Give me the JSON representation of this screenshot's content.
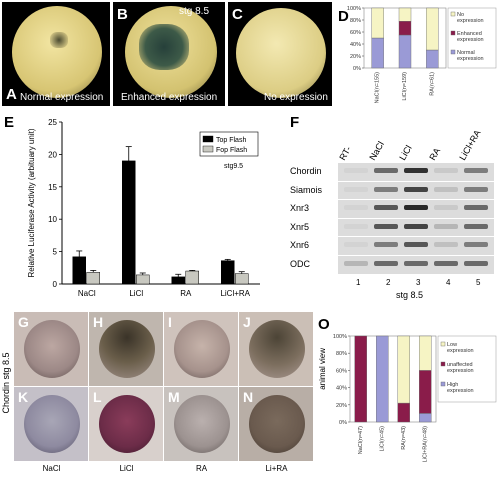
{
  "panelA": {
    "letter": "A",
    "caption": "Normal expression"
  },
  "panelB": {
    "letter": "B",
    "caption": "Enhanced expression",
    "stage": "stg 8.5"
  },
  "panelC": {
    "letter": "C",
    "caption": "No expression"
  },
  "panelD": {
    "letter": "D",
    "chart_data": {
      "type": "bar",
      "stacked": true,
      "categories": [
        "NaCl(n=155)",
        "LiCl(n=159)",
        "RA(n=61)"
      ],
      "yticks": [
        "0%",
        "20%",
        "40%",
        "60%",
        "80%",
        "100%"
      ],
      "ylim": [
        0,
        100
      ],
      "series": [
        {
          "name": "Normal expression",
          "color": "#9a9ad6",
          "values": [
            50,
            55,
            30
          ]
        },
        {
          "name": "Enhanced expression",
          "color": "#8a1c4a",
          "values": [
            0,
            23,
            0
          ]
        },
        {
          "name": "No expression",
          "color": "#f6f4c4",
          "values": [
            50,
            22,
            70
          ]
        }
      ],
      "legend_entries": [
        "No expression",
        "Enhanced expression",
        "Normal expression"
      ],
      "legend": "right"
    }
  },
  "panelE": {
    "letter": "E",
    "chart_data": {
      "type": "bar",
      "categories": [
        "NaCl",
        "LiCl",
        "RA",
        "LiCl+RA"
      ],
      "ylabel": "Relative Luciferase Activity (arbituary unit)",
      "ylim": [
        0,
        25
      ],
      "yticks": [
        "0",
        "5",
        "10",
        "15",
        "20",
        "25"
      ],
      "annotation": "stg9.5",
      "legend": "top-right",
      "series": [
        {
          "name": "Top Flash",
          "color": "#000000",
          "values": [
            4.2,
            19.0,
            1.1,
            3.6
          ],
          "errors": [
            0.9,
            2.2,
            0.4,
            0.2
          ]
        },
        {
          "name": "Fop Flash",
          "color": "#c8c8c0",
          "values": [
            1.8,
            1.4,
            2.0,
            1.6
          ],
          "errors": [
            0.3,
            0.3,
            0.1,
            0.3
          ]
        }
      ]
    }
  },
  "panelF": {
    "letter": "F",
    "lanes": [
      "RT-",
      "NaCl",
      "LiCl",
      "RA",
      "LiCl+RA"
    ],
    "genes": [
      "Chordin",
      "Siamois",
      "Xnr3",
      "Xnr5",
      "Xnr6",
      "ODC"
    ],
    "lane_numbers": [
      "1",
      "2",
      "3",
      "4",
      "5"
    ],
    "stage": "stg 8.5"
  },
  "panelsGN": {
    "side_label": "Chordin stg 8.5",
    "letters_top": [
      "G",
      "H",
      "I",
      "J"
    ],
    "letters_bottom": [
      "K",
      "L",
      "M",
      "N"
    ],
    "conditions": [
      "NaCl",
      "LiCl",
      "RA",
      "Li+RA"
    ]
  },
  "panelO": {
    "letter": "O",
    "ylabel": "animal view",
    "chart_data": {
      "type": "bar",
      "stacked": true,
      "categories": [
        "NaCl(n=47)",
        "LiCl(n=45)",
        "RA(n=43)",
        "LiCl+RA(n=48)"
      ],
      "yticks": [
        "0%",
        "20%",
        "40%",
        "60%",
        "80%",
        "100%"
      ],
      "ylim": [
        0,
        100
      ],
      "series": [
        {
          "name": "High expression",
          "color": "#9a9ad6",
          "values": [
            0,
            100,
            0,
            10
          ]
        },
        {
          "name": "unaffected expression",
          "color": "#8a1c4a",
          "values": [
            100,
            0,
            22,
            50
          ]
        },
        {
          "name": "Low expression",
          "color": "#f6f4c4",
          "values": [
            0,
            0,
            78,
            40
          ]
        }
      ],
      "legend_entries": [
        "Low expression",
        "unaffected expression",
        "High expression"
      ],
      "legend": "right"
    }
  }
}
